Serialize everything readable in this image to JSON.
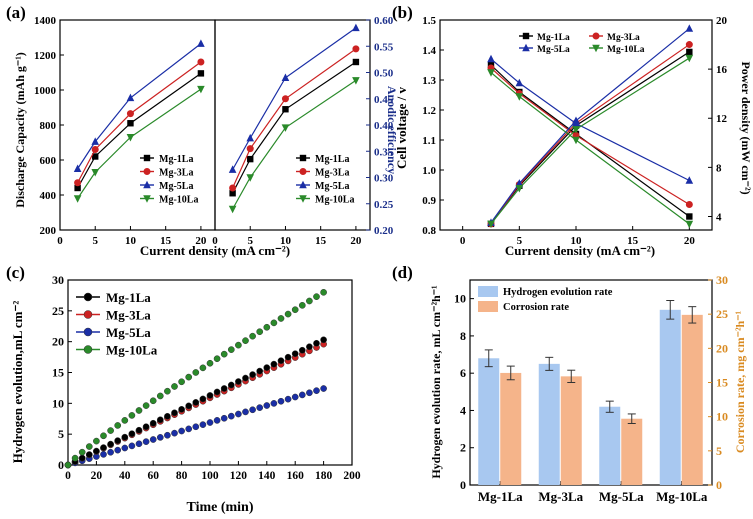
{
  "figure": {
    "panels": [
      "(a)",
      "(b)",
      "(c)",
      "(d)"
    ]
  },
  "colors": {
    "Mg-1La": "#000000",
    "Mg-3La": "#cc2222",
    "Mg-5La": "#1a2ea6",
    "Mg-10La": "#2a8a2a",
    "axis_right_blue": "#1a2e8a",
    "axis_right_orange": "#d98a20",
    "bar_hydrogen": "#a8c8f0",
    "bar_corrosion": "#f5b48a"
  },
  "chart_data": [
    {
      "panel": "(a)",
      "type": "line",
      "xlabel": "Current density (mA cm⁻²)",
      "left": {
        "ylabel": "Discharge Capacity (mAh g⁻¹)",
        "ylim": [
          200,
          1400
        ],
        "yticks": [
          200,
          400,
          600,
          800,
          1000,
          1200,
          1400
        ],
        "xlim": [
          0,
          22
        ],
        "xticks": [
          0,
          5,
          10,
          15,
          20
        ],
        "x": [
          2.5,
          5,
          10,
          20
        ],
        "series": [
          {
            "name": "Mg-1La",
            "values": [
              440,
              620,
              810,
              1095
            ]
          },
          {
            "name": "Mg-3La",
            "values": [
              470,
              660,
              865,
              1160
            ]
          },
          {
            "name": "Mg-5La",
            "values": [
              550,
              705,
              955,
              1265
            ]
          },
          {
            "name": "Mg-10La",
            "values": [
              380,
              530,
              730,
              1005
            ]
          }
        ]
      },
      "right": {
        "ylabel": "Anodic efficiency",
        "ylim": [
          0.2,
          0.6
        ],
        "yticks": [
          "0.20",
          "0.25",
          "0.30",
          "0.35",
          "0.40",
          "0.45",
          "0.50",
          "0.55",
          "0.60"
        ],
        "xlim": [
          0,
          22
        ],
        "xticks": [
          0,
          5,
          10,
          15,
          20
        ],
        "x": [
          2.5,
          5,
          10,
          20
        ],
        "series": [
          {
            "name": "Mg-1La",
            "values": [
              0.27,
              0.335,
              0.43,
              0.52
            ]
          },
          {
            "name": "Mg-3La",
            "values": [
              0.28,
              0.355,
              0.45,
              0.545
            ]
          },
          {
            "name": "Mg-5La",
            "values": [
              0.315,
              0.375,
              0.49,
              0.585
            ]
          },
          {
            "name": "Mg-10La",
            "values": [
              0.24,
              0.3,
              0.395,
              0.485
            ]
          }
        ]
      }
    },
    {
      "panel": "(b)",
      "type": "line",
      "xlabel": "Current density (mA cm⁻²)",
      "ylabel": "Cell voltage / v",
      "ylabel_right": "Power density (mW cm⁻²)",
      "xlim": [
        -2,
        22
      ],
      "xticks": [
        0,
        5,
        10,
        15,
        20
      ],
      "ylim": [
        0.8,
        1.5
      ],
      "yticks": [
        "0.8",
        "0.9",
        "1.0",
        "1.1",
        "1.2",
        "1.3",
        "1.4",
        "1.5"
      ],
      "ylim_right": [
        2.9,
        20
      ],
      "yticks_right": [
        4,
        8,
        12,
        16,
        20
      ],
      "x": [
        2.5,
        5,
        10,
        20
      ],
      "series": [
        {
          "name": "Mg-1La",
          "voltage": [
            1.35,
            1.26,
            1.12,
            0.845
          ],
          "power": [
            3.4,
            6.5,
            11.4,
            17.4
          ]
        },
        {
          "name": "Mg-3La",
          "voltage": [
            1.34,
            1.255,
            1.115,
            0.885
          ],
          "power": [
            3.4,
            6.6,
            11.6,
            18.0
          ]
        },
        {
          "name": "Mg-5La",
          "voltage": [
            1.37,
            1.29,
            1.155,
            0.965
          ],
          "power": [
            3.5,
            6.7,
            11.8,
            19.3
          ]
        },
        {
          "name": "Mg-10La",
          "voltage": [
            1.325,
            1.245,
            1.1,
            0.82
          ],
          "power": [
            3.4,
            6.3,
            11.1,
            16.9
          ]
        }
      ]
    },
    {
      "panel": "(c)",
      "type": "scatter",
      "xlabel": "Time (min)",
      "ylabel": "Hydrogen evolution,mL cm⁻²",
      "xlim": [
        0,
        200
      ],
      "xticks": [
        0,
        20,
        40,
        60,
        80,
        100,
        120,
        140,
        160,
        180,
        200
      ],
      "ylim": [
        0,
        30
      ],
      "yticks": [
        0,
        5,
        10,
        15,
        20,
        25,
        30
      ],
      "x_step": 5,
      "x_end": 180,
      "series": [
        {
          "name": "Mg-1La",
          "end_value": 20.3,
          "shape_power": 1.0
        },
        {
          "name": "Mg-3La",
          "end_value": 19.6,
          "shape_power": 1.0
        },
        {
          "name": "Mg-5La",
          "end_value": 12.4,
          "shape_power": 1.0
        },
        {
          "name": "Mg-10La",
          "end_value": 28.0,
          "shape_power": 0.9
        }
      ]
    },
    {
      "panel": "(d)",
      "type": "bar",
      "categories": [
        "Mg-1La",
        "Mg-3La",
        "Mg-5La",
        "Mg-10La"
      ],
      "ylabel": "Hydrogen evolution rate, mL cm⁻²h⁻¹",
      "ylabel_right": "Corrosion rate, mg cm⁻²h⁻¹",
      "ylim": [
        0,
        11
      ],
      "yticks": [
        0,
        2,
        4,
        6,
        8,
        10
      ],
      "ylim_right": [
        0,
        30
      ],
      "yticks_right": [
        0,
        5,
        10,
        15,
        20,
        25,
        30
      ],
      "series": [
        {
          "name": "Hydrogen evolution rate",
          "values": [
            6.8,
            6.5,
            4.2,
            9.4
          ],
          "errors": [
            0.45,
            0.35,
            0.3,
            0.5
          ]
        },
        {
          "name": "Corrosion rate",
          "values": [
            16.4,
            15.9,
            9.7,
            24.9
          ],
          "errors": [
            1.0,
            0.9,
            0.7,
            1.2
          ]
        }
      ]
    }
  ]
}
